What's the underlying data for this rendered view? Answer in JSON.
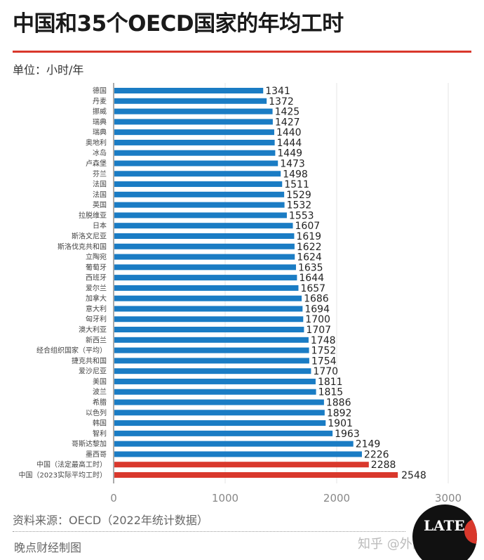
{
  "header": {
    "title": "中国和35个OECD国家的年均工时",
    "unit": "单位：小时/年"
  },
  "footer": {
    "source": "资料来源：OECD（2022年统计数据）",
    "credit": "晚点财经制图",
    "zhihu": "知乎 @外面的世界",
    "logo_text": "LATE NEWS"
  },
  "colors": {
    "bar": "#1a7cc4",
    "highlight": "#d9382c",
    "accent": "#d9382c"
  },
  "chart_data": {
    "type": "bar",
    "orientation": "horizontal",
    "title": "中国和35个OECD国家的年均工时",
    "unit": "单位：小时/年",
    "xlim": [
      0,
      3000
    ],
    "xticks": [
      0,
      1000,
      2000,
      3000
    ],
    "grid": true,
    "categories": [
      "德国",
      "丹麦",
      "挪威",
      "瑞典",
      "瑞典",
      "奥地利",
      "冰岛",
      "卢森堡",
      "芬兰",
      "法国",
      "法国",
      "英国",
      "拉脱维亚",
      "日本",
      "斯洛文尼亚",
      "斯洛伐克共和国",
      "立陶宛",
      "葡萄牙",
      "西班牙",
      "爱尔兰",
      "加拿大",
      "意大利",
      "匈牙利",
      "澳大利亚",
      "新西兰",
      "经合组织国家（平均）",
      "捷克共和国",
      "爱沙尼亚",
      "美国",
      "波兰",
      "希腊",
      "以色列",
      "韩国",
      "智利",
      "哥斯达黎加",
      "墨西哥",
      "中国（法定最高工时）",
      "中国（2023实际平均工时）"
    ],
    "values": [
      1341,
      1372,
      1425,
      1427,
      1440,
      1444,
      1449,
      1473,
      1498,
      1511,
      1529,
      1532,
      1553,
      1607,
      1619,
      1622,
      1624,
      1635,
      1644,
      1657,
      1686,
      1694,
      1700,
      1707,
      1748,
      1752,
      1754,
      1770,
      1811,
      1815,
      1886,
      1892,
      1901,
      1963,
      2149,
      2226,
      2288,
      2548
    ],
    "highlighted": [
      "中国（法定最高工时）",
      "中国（2023实际平均工时）"
    ]
  }
}
